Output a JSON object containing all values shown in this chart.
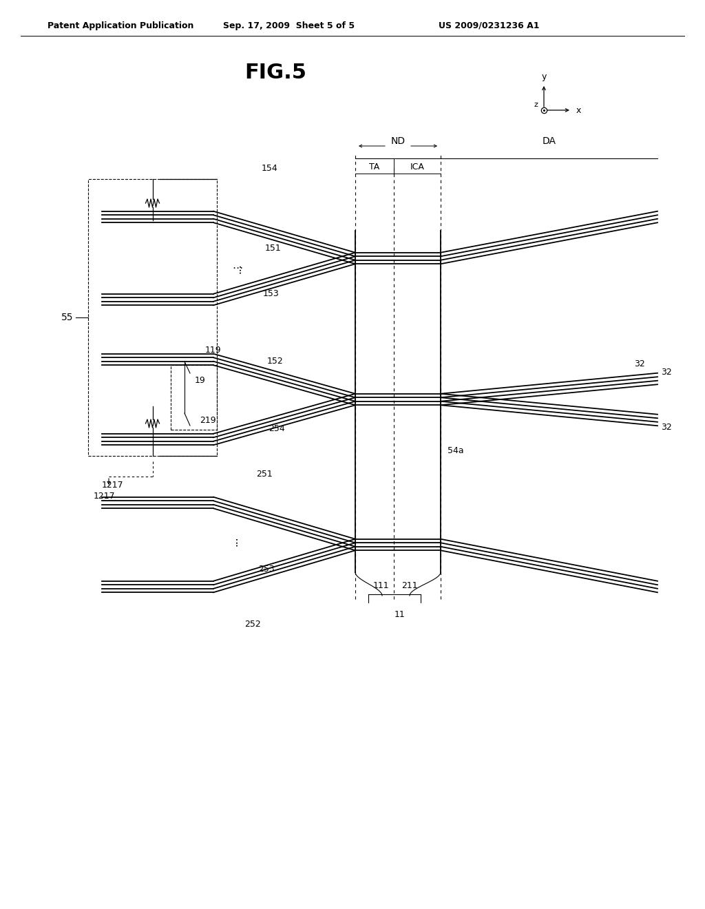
{
  "title": "FIG.5",
  "header_left": "Patent Application Publication",
  "header_center": "Sep. 17, 2009  Sheet 5 of 5",
  "header_right": "US 2009/0231236 A1",
  "background_color": "#ffffff",
  "line_color": "#000000",
  "fig_width": 10.24,
  "fig_height": 13.2,
  "dpi": 100
}
